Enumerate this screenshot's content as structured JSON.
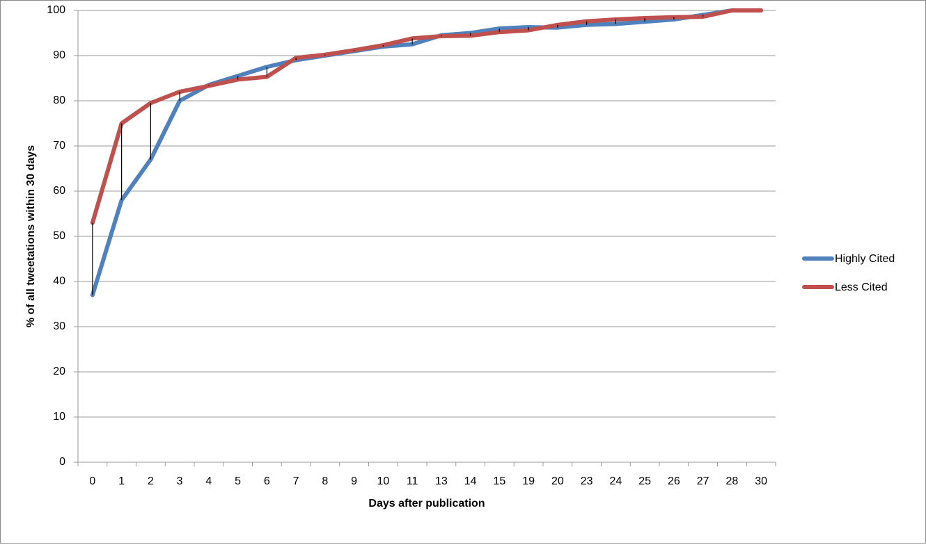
{
  "chart_data": {
    "type": "line",
    "x_label": "Days after publication",
    "y_label": "% of all tweetations within 30 days",
    "categories": [
      "0",
      "1",
      "2",
      "3",
      "4",
      "5",
      "6",
      "7",
      "8",
      "9",
      "10",
      "11",
      "13",
      "14",
      "15",
      "19",
      "20",
      "23",
      "24",
      "25",
      "26",
      "27",
      "28",
      "30"
    ],
    "series": [
      {
        "name": "Highly Cited",
        "color": "#4f81bd",
        "values": [
          37,
          58,
          67,
          80,
          83.5,
          85.5,
          87.5,
          89,
          90,
          91,
          92,
          92.5,
          94.5,
          95,
          96,
          96.3,
          96.2,
          96.8,
          97,
          97.5,
          98,
          99,
          100,
          100
        ]
      },
      {
        "name": "Less Cited",
        "color": "#c0504d",
        "values": [
          53,
          75,
          79.5,
          82,
          83.3,
          84.7,
          85.3,
          89.5,
          90.2,
          91.2,
          92.3,
          93.8,
          94.3,
          94.4,
          95.2,
          95.6,
          96.8,
          97.6,
          98,
          98.3,
          98.5,
          98.6,
          100,
          100
        ]
      }
    ],
    "ylim": [
      0,
      100
    ],
    "yticks": [
      0,
      10,
      20,
      30,
      40,
      50,
      60,
      70,
      80,
      90,
      100
    ],
    "grid": true,
    "high_low_lines": true,
    "legend": "right"
  }
}
